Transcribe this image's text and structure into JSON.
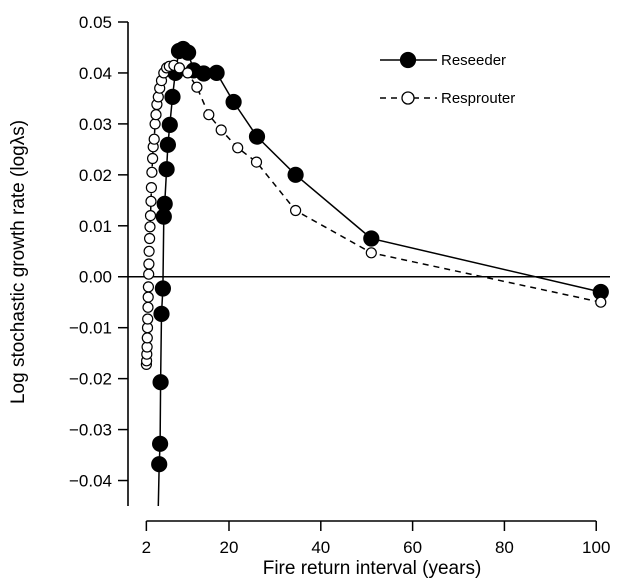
{
  "chart_data": {
    "type": "line",
    "xlabel": "Fire return interval (years)",
    "ylabel": "Log stochastic growth rate (logλs)",
    "xlim": [
      -2,
      103
    ],
    "ylim": [
      -0.045,
      0.05
    ],
    "x_ticks": [
      2,
      20,
      40,
      60,
      80,
      100
    ],
    "y_ticks": [
      -0.04,
      -0.03,
      -0.02,
      -0.01,
      0.0,
      0.01,
      0.02,
      0.03,
      0.04,
      0.05
    ],
    "x_tick_labels": [
      "2",
      "20",
      "40",
      "60",
      "80",
      "100"
    ],
    "y_tick_labels": [
      "−0.04",
      "−0.03",
      "−0.02",
      "−0.01",
      "0.00",
      "0.01",
      "0.02",
      "0.03",
      "0.04",
      "0.05"
    ],
    "reference_line_y": 0,
    "grid": false,
    "legend_position": "top-right",
    "series": [
      {
        "name": "Reseeder",
        "marker": "filled-circle",
        "line_style": "solid",
        "color": "#000000",
        "x": [
          4.6,
          4.8,
          5.0,
          5.1,
          5.3,
          5.6,
          5.8,
          6.0,
          6.4,
          6.7,
          7.1,
          7.7,
          8.3,
          9.1,
          10.0,
          11.1,
          12.3,
          14.5,
          17.3,
          21.0,
          26.1,
          34.5,
          51.0,
          101.0
        ],
        "y": [
          -0.045,
          -0.0368,
          -0.0328,
          -0.0207,
          -0.0073,
          -0.0023,
          0.0118,
          0.0143,
          0.0211,
          0.0259,
          0.0298,
          0.0353,
          0.04,
          0.0443,
          0.0447,
          0.044,
          0.0405,
          0.0399,
          0.04,
          0.0343,
          0.0275,
          0.02,
          0.0075,
          -0.003
        ]
      },
      {
        "name": "Resprouter",
        "marker": "open-circle",
        "line_style": "dashed",
        "color": "#000000",
        "x": [
          2.0,
          2.05,
          2.1,
          2.15,
          2.2,
          2.25,
          2.3,
          2.35,
          2.4,
          2.45,
          2.5,
          2.55,
          2.6,
          2.7,
          2.8,
          2.9,
          3.0,
          3.1,
          3.2,
          3.35,
          3.5,
          3.7,
          3.9,
          4.1,
          4.3,
          4.6,
          4.9,
          5.3,
          5.8,
          6.4,
          7.0,
          8.0,
          9.2,
          11.0,
          13.0,
          15.6,
          18.3,
          21.9,
          26.0,
          34.5,
          51.0,
          101.0
        ],
        "y": [
          -0.0172,
          -0.0165,
          -0.0152,
          -0.0138,
          -0.012,
          -0.01,
          -0.0083,
          -0.006,
          -0.004,
          -0.002,
          0.0005,
          0.0025,
          0.005,
          0.0075,
          0.0098,
          0.012,
          0.0148,
          0.0175,
          0.0205,
          0.0232,
          0.0255,
          0.027,
          0.03,
          0.0318,
          0.0338,
          0.0353,
          0.037,
          0.0385,
          0.04,
          0.041,
          0.0413,
          0.0415,
          0.041,
          0.04,
          0.0372,
          0.0318,
          0.0288,
          0.0253,
          0.0225,
          0.013,
          0.0047,
          -0.005
        ]
      }
    ]
  }
}
